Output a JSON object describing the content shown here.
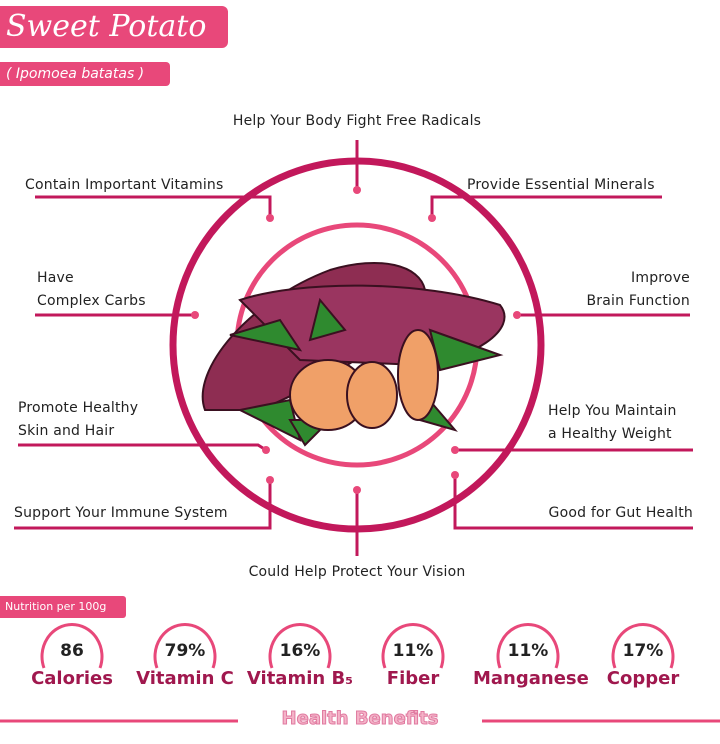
{
  "header": {
    "title": "Sweet Potato",
    "scientific_name": "( Ipomoea batatas )"
  },
  "benefits": {
    "top": "Help Your Body Fight Free Radicals",
    "top_left": "Contain Important Vitamins",
    "top_right": "Provide Essential Minerals",
    "mid_left": [
      "Have",
      "Complex Carbs"
    ],
    "mid_right": [
      "Improve",
      "Brain Function"
    ],
    "lower_left": [
      "Promote Healthy",
      "Skin and Hair"
    ],
    "lower_right": [
      "Help You Maintain",
      "a Healthy Weight"
    ],
    "bottom_left": "Support Your Immune System",
    "bottom_right": "Good for Gut Health",
    "bottom": "Could Help Protect Your Vision"
  },
  "nutrition": {
    "label": "Nutrition per 100g",
    "items": [
      {
        "value": "86",
        "name": "Calories"
      },
      {
        "value": "79%",
        "name": "Vitamin C"
      },
      {
        "value": "16%",
        "name": "Vitamin B₅"
      },
      {
        "value": "11%",
        "name": "Fiber"
      },
      {
        "value": "11%",
        "name": "Manganese"
      },
      {
        "value": "17%",
        "name": "Copper"
      }
    ]
  },
  "footer": {
    "label": "Health Benefits"
  },
  "colors": {
    "accent": "#e8487a",
    "ring": "#c2185b",
    "label_dark": "#a0184e"
  }
}
